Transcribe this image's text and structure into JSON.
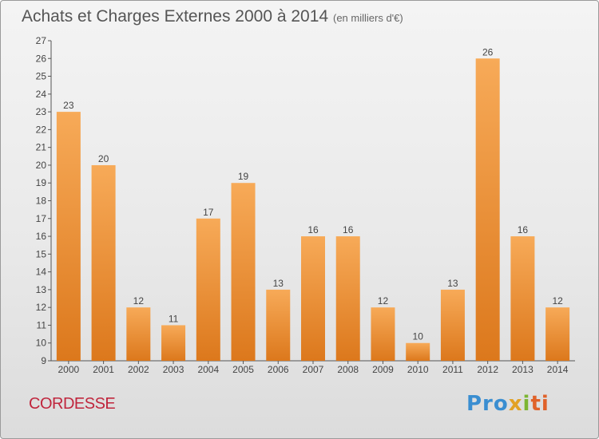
{
  "title": "Achats et Charges Externes 2000 à 2014",
  "subtitle": "(en milliers d'€)",
  "commune": "CORDESSE",
  "brand": {
    "p1": "Pro",
    "p2": "x",
    "p3": "i",
    "p4": "ti"
  },
  "colors": {
    "bar_light": "#f6a653",
    "bar_dark": "#dd7a1f",
    "title": "#555555",
    "commune": "#c0263d"
  },
  "chart_data": {
    "type": "bar",
    "categories": [
      "2000",
      "2001",
      "2002",
      "2003",
      "2004",
      "2005",
      "2006",
      "2007",
      "2008",
      "2009",
      "2010",
      "2011",
      "2012",
      "2013",
      "2014"
    ],
    "values": [
      23,
      20,
      12,
      11,
      17,
      19,
      13,
      16,
      16,
      12,
      10,
      13,
      26,
      16,
      12
    ],
    "ylim": [
      9,
      27
    ],
    "yticks": [
      9,
      10,
      11,
      12,
      13,
      14,
      15,
      16,
      17,
      18,
      19,
      20,
      21,
      22,
      23,
      24,
      25,
      26,
      27
    ],
    "grid": false
  }
}
